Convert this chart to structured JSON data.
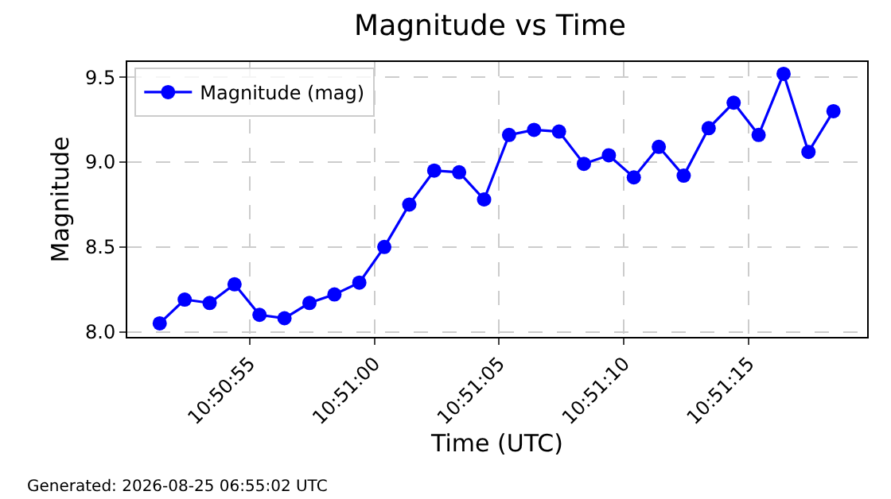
{
  "chart_data": {
    "type": "line",
    "title": "Magnitude vs Time",
    "xlabel": "Time (UTC)",
    "ylabel": "Magnitude",
    "x": [
      10.847611,
      10.847889,
      10.848167,
      10.848444,
      10.848722,
      10.849,
      10.849278,
      10.849556,
      10.849833,
      10.850111,
      10.850389,
      10.850667,
      10.850944,
      10.851222,
      10.8515,
      10.851778,
      10.852056,
      10.852333,
      10.852611,
      10.852889,
      10.853167,
      10.853444,
      10.853722,
      10.854,
      10.854278,
      10.854556,
      10.854833,
      10.855111
    ],
    "series": [
      {
        "name": "Magnitude (mag)",
        "color": "#0000ff",
        "values": [
          8.05,
          8.19,
          8.17,
          8.28,
          8.1,
          8.08,
          8.17,
          8.22,
          8.29,
          8.5,
          8.75,
          8.95,
          8.94,
          8.78,
          9.16,
          9.19,
          9.18,
          8.99,
          9.04,
          8.91,
          9.09,
          8.92,
          9.2,
          9.35,
          9.16,
          9.52,
          9.06,
          9.3
        ]
      }
    ],
    "xlim": [
      10.84725,
      10.855486
    ],
    "xticks": [
      {
        "value": 10.848611,
        "label": "10:50:55"
      },
      {
        "value": 10.85,
        "label": "10:51:00"
      },
      {
        "value": 10.851389,
        "label": "10:51:05"
      },
      {
        "value": 10.852778,
        "label": "10:51:10"
      },
      {
        "value": 10.854167,
        "label": "10:51:15"
      }
    ],
    "ylim": [
      7.97,
      9.59
    ],
    "yticks": [
      {
        "value": 8,
        "label": "8.0"
      },
      8.5,
      {
        "value": 9,
        "label": "9.0"
      },
      9.5
    ],
    "grid": true,
    "legend": "top left",
    "marker": "circle",
    "line_style": "solid",
    "annotations": [
      "Generated: 2026-08-25 06:55:02 UTC"
    ]
  }
}
